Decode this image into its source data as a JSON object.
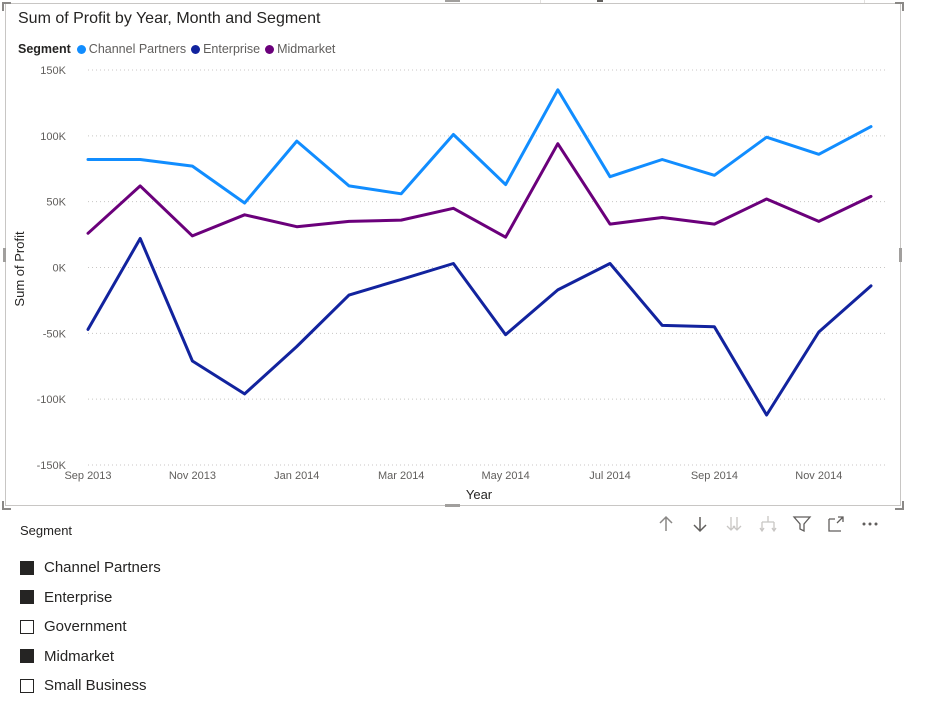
{
  "visual": {
    "title": "Sum of Profit by Year, Month and Segment",
    "legend_title": "Segment",
    "legend": [
      {
        "name": "Channel Partners",
        "color": "#118dff"
      },
      {
        "name": "Enterprise",
        "color": "#12239e"
      },
      {
        "name": "Midmarket",
        "color": "#6b007b"
      }
    ]
  },
  "chart_data": {
    "type": "line",
    "title": "Sum of Profit by Year, Month and Segment",
    "xlabel": "Year",
    "ylabel": "Sum of Profit",
    "x_tick_labels": [
      "Sep 2013",
      "Nov 2013",
      "Jan 2014",
      "Mar 2014",
      "May 2014",
      "Jul 2014",
      "Sep 2014",
      "Nov 2014"
    ],
    "y_tick_labels": [
      "150K",
      "100K",
      "50K",
      "0K",
      "-50K",
      "-100K",
      "-150K"
    ],
    "y_ticks": [
      150000,
      100000,
      50000,
      0,
      -50000,
      -100000,
      -150000
    ],
    "ylim": [
      -150000,
      150000
    ],
    "grid": "horizontal dotted",
    "legend_position": "top-left",
    "x": [
      "2013-09",
      "2013-10",
      "2013-11",
      "2013-12",
      "2014-01",
      "2014-02",
      "2014-03",
      "2014-04",
      "2014-05",
      "2014-06",
      "2014-07",
      "2014-08",
      "2014-09",
      "2014-10",
      "2014-11",
      "2014-12"
    ],
    "series": [
      {
        "name": "Channel Partners",
        "color": "#118dff",
        "values": [
          82000,
          82000,
          77000,
          49000,
          96000,
          62000,
          56000,
          101000,
          63000,
          135000,
          69000,
          82000,
          70000,
          99000,
          86000,
          107000
        ]
      },
      {
        "name": "Enterprise",
        "color": "#12239e",
        "values": [
          -47000,
          22000,
          -71000,
          -96000,
          -60000,
          -21000,
          -9000,
          3000,
          -51000,
          -17000,
          3000,
          -44000,
          -45000,
          -112000,
          -49000,
          -14000
        ]
      },
      {
        "name": "Midmarket",
        "color": "#6b007b",
        "values": [
          26000,
          62000,
          24000,
          40000,
          31000,
          35000,
          36000,
          45000,
          23000,
          94000,
          33000,
          38000,
          33000,
          52000,
          35000,
          54000
        ]
      }
    ]
  },
  "toolbar": {
    "icons": [
      "arrow-up-icon",
      "arrow-down-icon",
      "double-arrow-down-icon",
      "expand-hierarchy-icon",
      "filter-icon",
      "focus-mode-icon",
      "more-options-icon"
    ]
  },
  "slicer": {
    "title": "Segment",
    "items": [
      {
        "label": "Channel Partners",
        "checked": true
      },
      {
        "label": "Enterprise",
        "checked": true
      },
      {
        "label": "Government",
        "checked": false
      },
      {
        "label": "Midmarket",
        "checked": true
      },
      {
        "label": "Small Business",
        "checked": false
      }
    ]
  }
}
